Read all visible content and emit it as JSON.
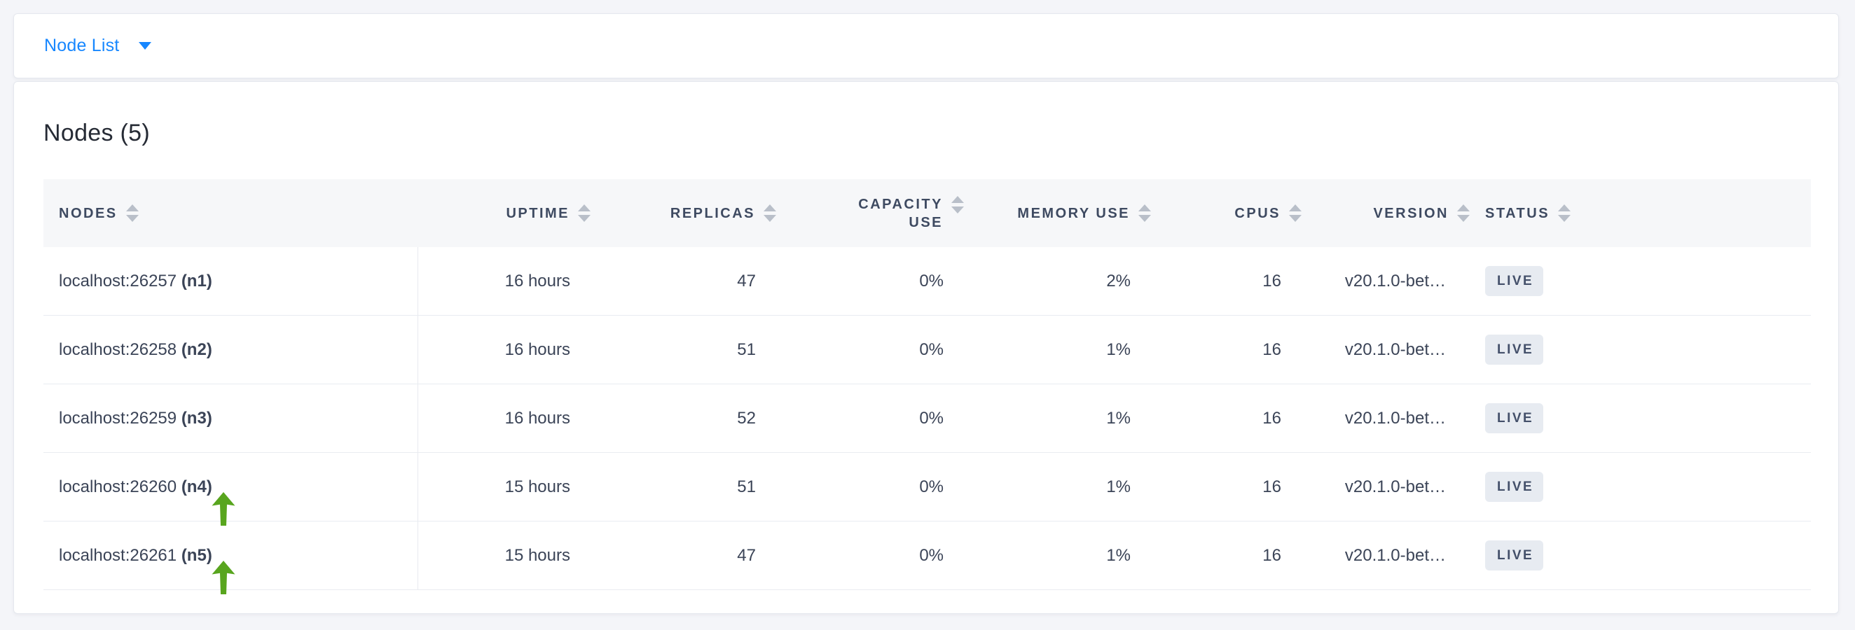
{
  "colors": {
    "accent_blue": "#1787ff",
    "arrow_green": "#58a51e",
    "badge_bg": "#e7ebf1",
    "badge_text": "#44506a"
  },
  "selector_bar": {
    "label": "Node List"
  },
  "main": {
    "title": "Nodes (5)",
    "table": {
      "columns": [
        {
          "id": "nodes",
          "label": "NODES",
          "align": "left"
        },
        {
          "id": "uptime",
          "label": "UPTIME",
          "align": "right"
        },
        {
          "id": "replicas",
          "label": "REPLICAS",
          "align": "right"
        },
        {
          "id": "capacity-use",
          "label": "CAPACITY USE",
          "align": "right"
        },
        {
          "id": "memory-use",
          "label": "MEMORY USE",
          "align": "right"
        },
        {
          "id": "cpus",
          "label": "CPUS",
          "align": "right"
        },
        {
          "id": "version",
          "label": "VERSION",
          "align": "right"
        },
        {
          "id": "status",
          "label": "STATUS",
          "align": "left"
        }
      ],
      "rows": [
        {
          "address": "localhost:26257",
          "node_id": "(n1)",
          "uptime": "16 hours",
          "replicas": "47",
          "capacity_use": "0%",
          "memory_use": "2%",
          "cpus": "16",
          "version": "v20.1.0-bet…",
          "status": "LIVE",
          "annotated": false
        },
        {
          "address": "localhost:26258",
          "node_id": "(n2)",
          "uptime": "16 hours",
          "replicas": "51",
          "capacity_use": "0%",
          "memory_use": "1%",
          "cpus": "16",
          "version": "v20.1.0-bet…",
          "status": "LIVE",
          "annotated": false
        },
        {
          "address": "localhost:26259",
          "node_id": "(n3)",
          "uptime": "16 hours",
          "replicas": "52",
          "capacity_use": "0%",
          "memory_use": "1%",
          "cpus": "16",
          "version": "v20.1.0-bet…",
          "status": "LIVE",
          "annotated": false
        },
        {
          "address": "localhost:26260",
          "node_id": "(n4)",
          "uptime": "15 hours",
          "replicas": "51",
          "capacity_use": "0%",
          "memory_use": "1%",
          "cpus": "16",
          "version": "v20.1.0-bet…",
          "status": "LIVE",
          "annotated": true
        },
        {
          "address": "localhost:26261",
          "node_id": "(n5)",
          "uptime": "15 hours",
          "replicas": "47",
          "capacity_use": "0%",
          "memory_use": "1%",
          "cpus": "16",
          "version": "v20.1.0-bet…",
          "status": "LIVE",
          "annotated": true
        }
      ]
    }
  }
}
